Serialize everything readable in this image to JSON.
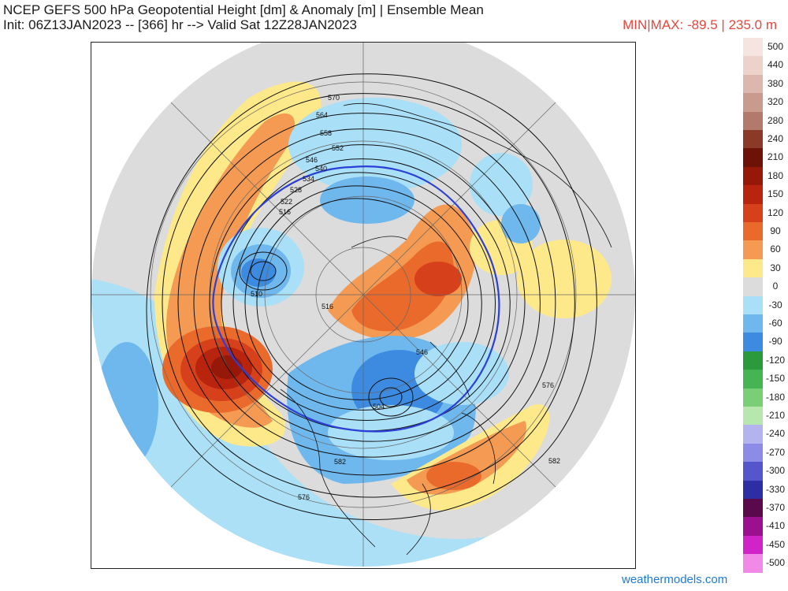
{
  "header": {
    "title": "NCEP GEFS 500 hPa Geopotential Height [dm] & Anomaly [m] | Ensemble Mean",
    "subtitle": "Init: 06Z13JAN2023 -- [366] hr --> Valid Sat 12Z28JAN2023",
    "minmax": "MIN|MAX: -89.5 | 235.0 m",
    "minmax_color": "#e8463c"
  },
  "credit": "weathermodels.com",
  "legend": {
    "items": [
      {
        "label": "500",
        "color": "#f6e4e0"
      },
      {
        "label": "440",
        "color": "#ecd2cb"
      },
      {
        "label": "380",
        "color": "#dcb7ad"
      },
      {
        "label": "320",
        "color": "#c99a8e"
      },
      {
        "label": "280",
        "color": "#b27a6d"
      },
      {
        "label": "240",
        "color": "#8a3a26"
      },
      {
        "label": "210",
        "color": "#6d1206"
      },
      {
        "label": "180",
        "color": "#961808"
      },
      {
        "label": "150",
        "color": "#b8240e"
      },
      {
        "label": "120",
        "color": "#d6401a"
      },
      {
        "label": "90",
        "color": "#ea6a2c"
      },
      {
        "label": "60",
        "color": "#f49a52"
      },
      {
        "label": "30",
        "color": "#fde98a"
      },
      {
        "label": "0",
        "color": "#dcdcdc"
      },
      {
        "label": "-30",
        "color": "#a9dff7"
      },
      {
        "label": "-60",
        "color": "#6fb8ee"
      },
      {
        "label": "-90",
        "color": "#3d8be0"
      },
      {
        "label": "-120",
        "color": "#2a9a3c"
      },
      {
        "label": "-150",
        "color": "#45b452"
      },
      {
        "label": "-180",
        "color": "#7ace76"
      },
      {
        "label": "-210",
        "color": "#b6e7ad"
      },
      {
        "label": "-240",
        "color": "#b3b3ee"
      },
      {
        "label": "-270",
        "color": "#8c8ce6"
      },
      {
        "label": "-300",
        "color": "#5656cc"
      },
      {
        "label": "-330",
        "color": "#2d2da4"
      },
      {
        "label": "-370",
        "color": "#5a0a4a"
      },
      {
        "label": "-410",
        "color": "#9c1090"
      },
      {
        "label": "-450",
        "color": "#d024c8"
      },
      {
        "label": "-500",
        "color": "#f08ae6"
      }
    ]
  },
  "map": {
    "contour_labels": [
      {
        "text": "570"
      },
      {
        "text": "564"
      },
      {
        "text": "558"
      },
      {
        "text": "552"
      },
      {
        "text": "546"
      },
      {
        "text": "540"
      },
      {
        "text": "534"
      },
      {
        "text": "528"
      },
      {
        "text": "522"
      },
      {
        "text": "516"
      },
      {
        "text": "510"
      },
      {
        "text": "516"
      },
      {
        "text": "576"
      },
      {
        "text": "582"
      },
      {
        "text": "504"
      },
      {
        "text": "546"
      },
      {
        "text": "576"
      },
      {
        "text": "582"
      }
    ]
  }
}
